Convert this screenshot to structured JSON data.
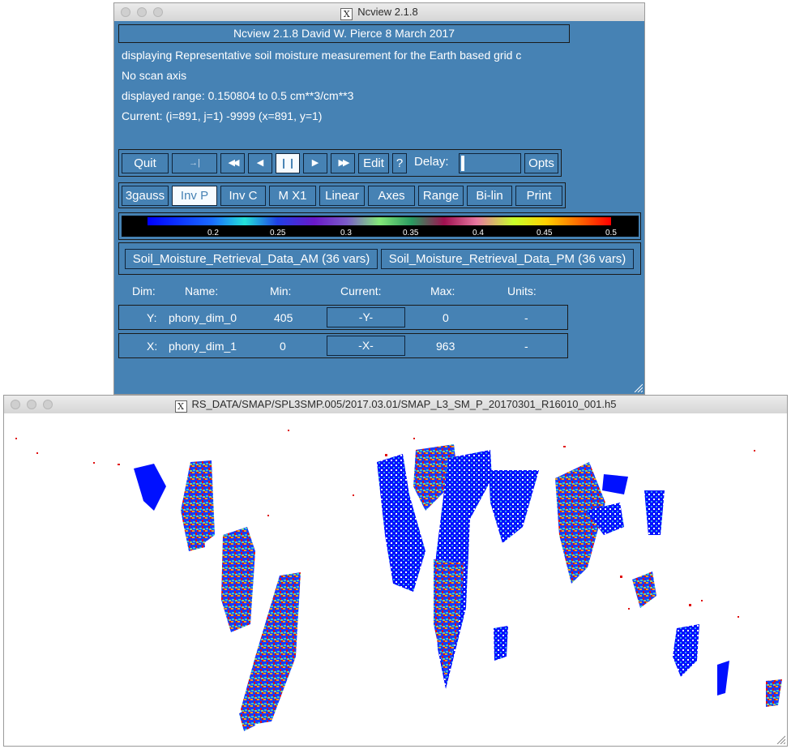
{
  "ncview_window": {
    "title": "Ncview 2.1.8",
    "banner": "Ncview 2.1.8 David W. Pierce  8 March 2017",
    "info_lines": [
      "displaying Representative soil moisture measurement for the Earth based grid c",
      "No scan axis",
      "displayed range: 0.150804 to 0.5 cm**3/cm**3",
      "Current: (i=891, j=1) -9999 (x=891, y=1)"
    ],
    "controls": {
      "quit": "Quit",
      "reverse": "→|",
      "rewind": "◀◀",
      "back": "◀",
      "pause": "❙❙",
      "forward": "▶",
      "fastforward": "▶▶",
      "edit": "Edit",
      "help": "?",
      "delay_label": "Delay:",
      "opts": "Opts"
    },
    "options": [
      "3gauss",
      "Inv P",
      "Inv C",
      "M X1",
      "Linear",
      "Axes",
      "Range",
      "Bi-lin",
      "Print"
    ],
    "colorbar": {
      "ticks": [
        "0.2",
        "0.25",
        "0.3",
        "0.35",
        "0.4",
        "0.45",
        "0.5"
      ]
    },
    "var_groups": [
      "Soil_Moisture_Retrieval_Data_AM (36 vars)",
      "Soil_Moisture_Retrieval_Data_PM (36 vars)"
    ],
    "dim_table": {
      "headers": [
        "Dim:",
        "Name:",
        "Min:",
        "Current:",
        "Max:",
        "Units:"
      ],
      "rows": [
        {
          "dim": "Y:",
          "name": "phony_dim_0",
          "min": "405",
          "current": "-Y-",
          "max": "0",
          "units": "-"
        },
        {
          "dim": "X:",
          "name": "phony_dim_1",
          "min": "0",
          "current": "-X-",
          "max": "963",
          "units": "-"
        }
      ]
    }
  },
  "map_window": {
    "title": "RS_DATA/SMAP/SPL3SMP.005/2017.03.01/SMAP_L3_SM_P_20170301_R16010_001.h5"
  }
}
